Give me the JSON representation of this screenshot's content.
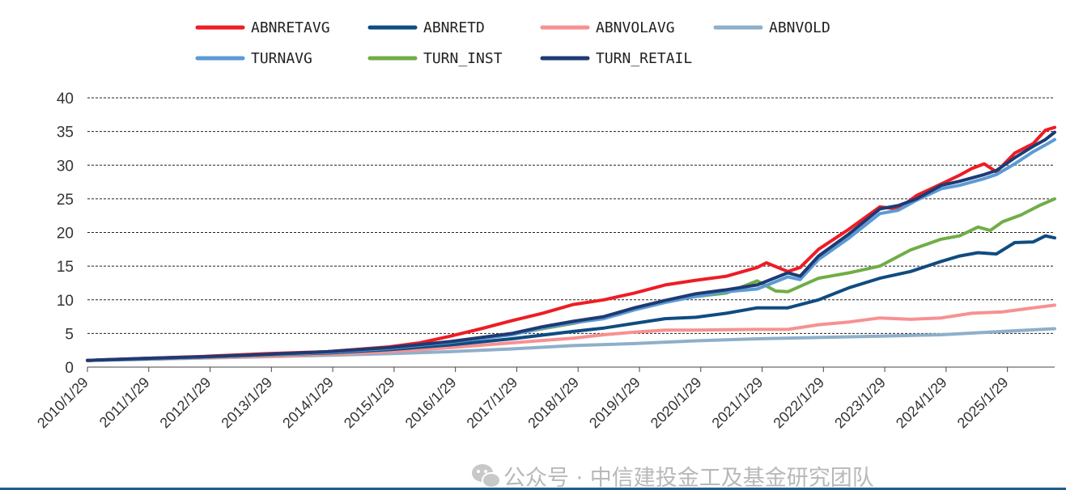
{
  "chart_data": {
    "type": "line",
    "title": "",
    "xlabel": "",
    "ylabel": "",
    "ylim": [
      0,
      40
    ],
    "yticks": [
      0,
      5,
      10,
      15,
      20,
      25,
      30,
      35,
      40
    ],
    "grid": "horizontal dashed",
    "legend_position": "top",
    "x_start_year": 2010.08,
    "x_end_year": 2025.85,
    "x_tick_labels": [
      "2010/1/29",
      "2011/1/29",
      "2012/1/29",
      "2013/1/29",
      "2014/1/29",
      "2015/1/29",
      "2016/1/29",
      "2017/1/29",
      "2018/1/29",
      "2019/1/29",
      "2020/1/29",
      "2021/1/29",
      "2022/1/29",
      "2023/1/29",
      "2024/1/29",
      "2025/1/29"
    ],
    "x_tick_years": [
      2010.08,
      2011.08,
      2012.08,
      2013.08,
      2014.08,
      2015.08,
      2016.08,
      2017.08,
      2018.08,
      2019.08,
      2020.08,
      2021.08,
      2022.08,
      2023.08,
      2024.08,
      2025.08
    ],
    "series": [
      {
        "name": "ABNRETAVG",
        "color": "#ee1c24",
        "x": [
          2010.08,
          2011,
          2012,
          2013,
          2014,
          2015,
          2015.5,
          2016,
          2016.5,
          2017,
          2017.5,
          2018,
          2018.5,
          2019,
          2019.5,
          2020,
          2020.5,
          2021,
          2021.15,
          2021.5,
          2021.7,
          2022,
          2022.5,
          2023,
          2023.3,
          2023.6,
          2024,
          2024.3,
          2024.5,
          2024.7,
          2024.9,
          2025.2,
          2025.5,
          2025.7,
          2025.85
        ],
        "y": [
          1,
          1.3,
          1.6,
          2,
          2.3,
          3,
          3.6,
          4.6,
          5.7,
          6.9,
          8,
          9.3,
          10,
          11,
          12.2,
          12.9,
          13.5,
          14.8,
          15.5,
          14.2,
          14.8,
          17.5,
          20.5,
          23.8,
          23.5,
          25.5,
          27.2,
          28.5,
          29.5,
          30.2,
          29,
          31.8,
          33.2,
          35.2,
          35.6
        ]
      },
      {
        "name": "ABNRETD",
        "color": "#0f4c81",
        "x": [
          2010.08,
          2011,
          2012,
          2013,
          2014,
          2015,
          2016,
          2017,
          2018,
          2018.5,
          2019,
          2019.5,
          2020,
          2020.5,
          2021,
          2021.5,
          2022,
          2022.5,
          2023,
          2023.5,
          2024,
          2024.3,
          2024.6,
          2024.9,
          2025.2,
          2025.5,
          2025.7,
          2025.85
        ],
        "y": [
          1,
          1.2,
          1.5,
          1.8,
          2.1,
          2.6,
          3.3,
          4.2,
          5.3,
          5.8,
          6.5,
          7.2,
          7.4,
          8,
          8.8,
          8.8,
          10,
          11.8,
          13.2,
          14.2,
          15.7,
          16.5,
          17,
          16.8,
          18.5,
          18.6,
          19.5,
          19.2
        ]
      },
      {
        "name": "ABNVOLAVG",
        "color": "#f79191",
        "x": [
          2010.08,
          2011,
          2012,
          2013,
          2014,
          2015,
          2016,
          2017,
          2018,
          2018.5,
          2019,
          2019.5,
          2020,
          2021,
          2021.5,
          2022,
          2022.5,
          2023,
          2023.5,
          2024,
          2024.5,
          2025,
          2025.5,
          2025.85
        ],
        "y": [
          1,
          1.2,
          1.4,
          1.6,
          1.9,
          2.3,
          2.9,
          3.6,
          4.3,
          4.8,
          5.2,
          5.5,
          5.5,
          5.6,
          5.6,
          6.3,
          6.7,
          7.3,
          7.1,
          7.3,
          8,
          8.2,
          8.8,
          9.2
        ]
      },
      {
        "name": "ABNVOLD",
        "color": "#8fafc9",
        "x": [
          2010.08,
          2011,
          2012,
          2013,
          2014,
          2015,
          2016,
          2017,
          2018,
          2019,
          2020,
          2021,
          2022,
          2023,
          2024,
          2025,
          2025.85
        ],
        "y": [
          1,
          1.15,
          1.35,
          1.55,
          1.75,
          2,
          2.3,
          2.7,
          3.2,
          3.5,
          3.9,
          4.2,
          4.4,
          4.6,
          4.8,
          5.3,
          5.7
        ]
      },
      {
        "name": "TURNAVG",
        "color": "#5b9bd5",
        "x": [
          2010.08,
          2011,
          2012,
          2013,
          2014,
          2015,
          2016,
          2017,
          2017.5,
          2018,
          2018.5,
          2019,
          2019.5,
          2020,
          2020.5,
          2021,
          2021.5,
          2021.7,
          2022,
          2022.5,
          2023,
          2023.3,
          2023.6,
          2024,
          2024.3,
          2024.5,
          2024.7,
          2024.9,
          2025.2,
          2025.5,
          2025.7,
          2025.85
        ],
        "y": [
          1,
          1.25,
          1.5,
          1.85,
          2.2,
          2.8,
          3.7,
          4.8,
          5.8,
          6.6,
          7.2,
          8.5,
          9.6,
          10.5,
          11.2,
          11.6,
          13.4,
          13,
          16,
          19.2,
          22.8,
          23.3,
          24.8,
          26.5,
          27,
          27.5,
          28,
          28.6,
          30.2,
          32,
          33,
          33.8
        ]
      },
      {
        "name": "TURN_INST",
        "color": "#70ad47",
        "x": [
          2010.08,
          2011,
          2012,
          2013,
          2014,
          2015,
          2016,
          2017,
          2018,
          2018.5,
          2019,
          2019.5,
          2020,
          2020.5,
          2021,
          2021.3,
          2021.5,
          2022,
          2022.5,
          2023,
          2023.5,
          2024,
          2024.3,
          2024.6,
          2024.8,
          2025,
          2025.3,
          2025.6,
          2025.85
        ],
        "y": [
          1,
          1.25,
          1.5,
          1.8,
          2.2,
          2.8,
          3.7,
          4.9,
          6.5,
          7.4,
          8.6,
          9.9,
          10.5,
          11,
          12.8,
          11.3,
          11.2,
          13.2,
          14,
          15,
          17.4,
          19,
          19.5,
          20.8,
          20.3,
          21.6,
          22.6,
          24,
          25
        ]
      },
      {
        "name": "TURN_RETAIL",
        "color": "#1f3a73",
        "x": [
          2010.08,
          2011,
          2012,
          2013,
          2014,
          2015,
          2016,
          2017,
          2017.5,
          2018,
          2018.5,
          2019,
          2019.5,
          2020,
          2020.5,
          2021,
          2021.5,
          2021.7,
          2022,
          2022.5,
          2023,
          2023.3,
          2023.6,
          2024,
          2024.3,
          2024.5,
          2024.7,
          2024.9,
          2025.2,
          2025.5,
          2025.7,
          2025.85
        ],
        "y": [
          1,
          1.3,
          1.55,
          1.9,
          2.3,
          2.9,
          3.8,
          5,
          6,
          6.8,
          7.5,
          8.8,
          9.9,
          10.9,
          11.5,
          12.2,
          14,
          13.5,
          16.5,
          19.8,
          23.5,
          24,
          25,
          27,
          27.6,
          28.1,
          28.6,
          29.2,
          31.1,
          32.8,
          33.8,
          34.9
        ]
      }
    ]
  },
  "watermark": {
    "icon": "wechat-icon",
    "text": "公众号 · 中信建投金工及基金研究团队"
  }
}
